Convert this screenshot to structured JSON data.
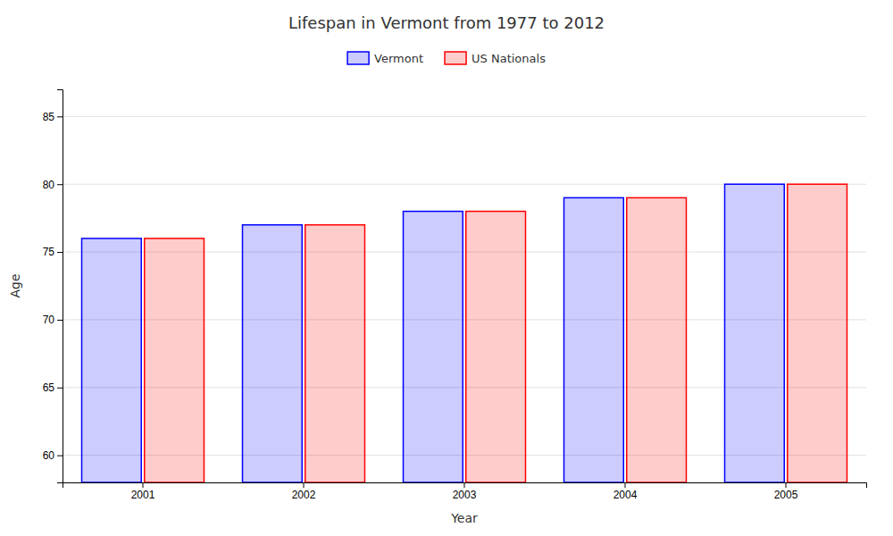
{
  "chart_data": {
    "type": "bar",
    "title": "Lifespan in Vermont from 1977 to 2012",
    "x_label": "Year",
    "y_label": "Age",
    "categories": [
      "2001",
      "2002",
      "2003",
      "2004",
      "2005"
    ],
    "series": [
      {
        "name": "Vermont",
        "color": "#0000ff",
        "values": [
          76.0,
          77.0,
          78.0,
          79.0,
          80.0
        ]
      },
      {
        "name": "US Nationals",
        "color": "#ff0000",
        "values": [
          76.0,
          77.0,
          78.0,
          79.0,
          80.0
        ]
      }
    ],
    "ylim": [
      58,
      87
    ],
    "yticks": [
      60,
      65,
      70,
      75,
      80,
      85
    ],
    "grid": true,
    "legend": "top"
  }
}
